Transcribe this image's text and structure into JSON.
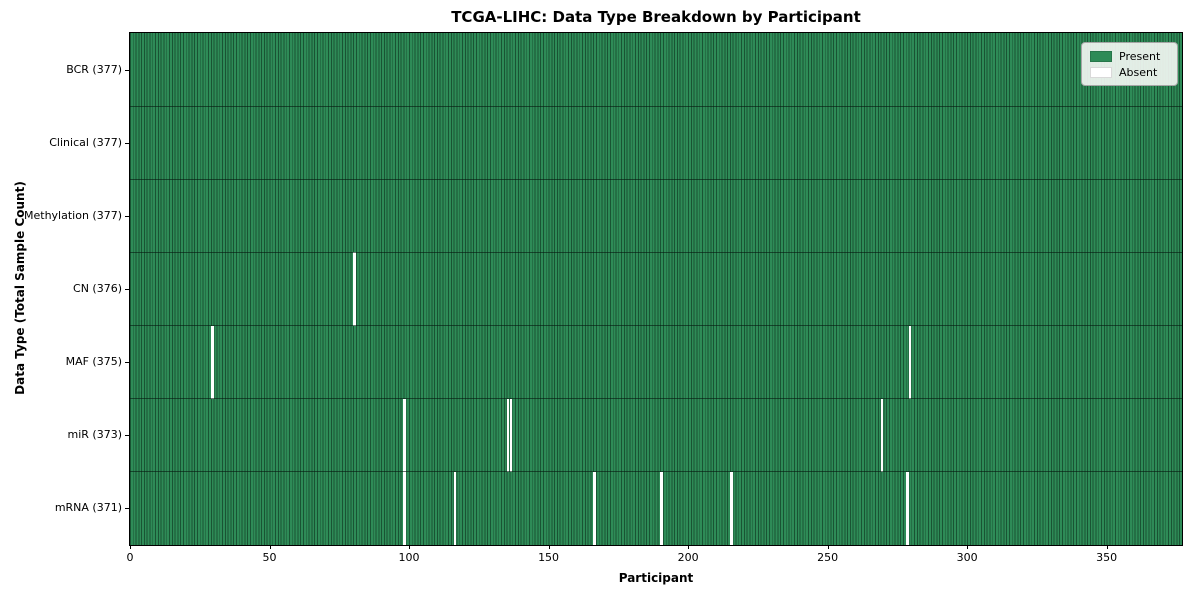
{
  "chart_data": {
    "type": "heatmap",
    "title": "TCGA-LIHC: Data Type Breakdown by Participant",
    "xlabel": "Participant",
    "ylabel": "Data Type (Total Sample Count)",
    "x_ticks": [
      0,
      50,
      100,
      150,
      200,
      250,
      300,
      350
    ],
    "x_range": [
      0,
      377
    ],
    "n_participants": 377,
    "grid": false,
    "colors": {
      "present": "#2e8b57",
      "absent": "#ffffff"
    },
    "legend": {
      "position": "upper right",
      "items": [
        {
          "label": "Present",
          "color": "#2e8b57"
        },
        {
          "label": "Absent",
          "color": "#ffffff"
        }
      ]
    },
    "rows": [
      {
        "label": "BCR (377)",
        "data_type": "BCR",
        "total": 377,
        "absent_participants": []
      },
      {
        "label": "Clinical (377)",
        "data_type": "Clinical",
        "total": 377,
        "absent_participants": []
      },
      {
        "label": "Methylation (377)",
        "data_type": "Methylation",
        "total": 377,
        "absent_participants": []
      },
      {
        "label": "CN (376)",
        "data_type": "CN",
        "total": 376,
        "absent_participants": [
          80
        ]
      },
      {
        "label": "MAF (375)",
        "data_type": "MAF",
        "total": 375,
        "absent_participants": [
          29,
          279
        ]
      },
      {
        "label": "miR (373)",
        "data_type": "miR",
        "total": 373,
        "absent_participants": [
          98,
          135,
          136,
          269
        ]
      },
      {
        "label": "mRNA (371)",
        "data_type": "mRNA",
        "total": 371,
        "absent_participants": [
          98,
          116,
          166,
          190,
          215,
          278
        ]
      }
    ]
  }
}
